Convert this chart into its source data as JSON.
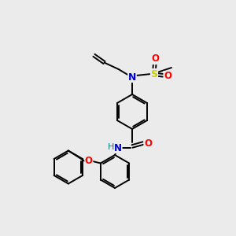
{
  "bg_color": "#ebebeb",
  "bond_color": "#000000",
  "atom_colors": {
    "N": "#0000cc",
    "O": "#ff0000",
    "S": "#cccc00",
    "H": "#008080",
    "C": "#000000"
  },
  "font_size": 8.5,
  "line_width": 1.4,
  "ring_r": 22
}
